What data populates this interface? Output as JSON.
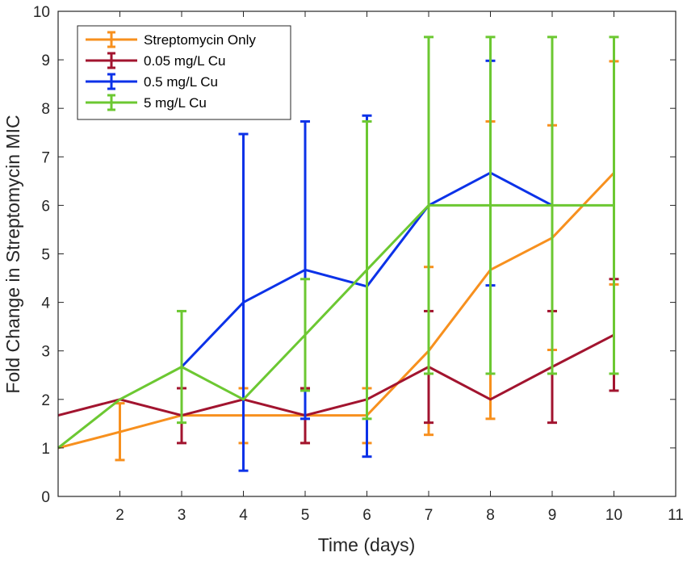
{
  "chart_data": {
    "type": "line",
    "title": "",
    "xlabel": "Time (days)",
    "ylabel": "Fold Change in Streptomycin MIC",
    "xlim": [
      1,
      11
    ],
    "ylim": [
      0,
      10
    ],
    "xticks": [
      2,
      3,
      4,
      5,
      6,
      7,
      8,
      9,
      10,
      11
    ],
    "yticks": [
      0,
      1,
      2,
      3,
      4,
      5,
      6,
      7,
      8,
      9,
      10
    ],
    "grid": false,
    "legend_position": "top-left",
    "series": [
      {
        "name": "Streptomycin Only",
        "color": "#F7901E",
        "x": [
          1,
          2,
          3,
          4,
          5,
          6,
          7,
          8,
          9,
          10
        ],
        "y": [
          1,
          1.33,
          1.67,
          1.67,
          1.67,
          1.67,
          3,
          4.67,
          5.33,
          6.67
        ],
        "err_low": [
          1,
          0.75,
          1.67,
          1.1,
          1.1,
          1.1,
          1.27,
          1.6,
          3.02,
          4.37
        ],
        "err_high": [
          1,
          1.92,
          1.67,
          2.23,
          2.23,
          2.23,
          4.73,
          7.73,
          7.65,
          8.97
        ]
      },
      {
        "name": "0.05 mg/L Cu",
        "color": "#A2142F",
        "x": [
          1,
          2,
          3,
          4,
          5,
          6,
          7,
          8,
          9,
          10
        ],
        "y": [
          1.67,
          2,
          1.67,
          2,
          1.67,
          2,
          2.67,
          2,
          2.67,
          3.33
        ],
        "err_low": [
          1.67,
          2,
          1.1,
          2,
          1.1,
          2,
          1.52,
          2,
          1.52,
          2.18
        ],
        "err_high": [
          1.67,
          2,
          2.23,
          2,
          2.23,
          2,
          3.82,
          2,
          3.82,
          4.48
        ]
      },
      {
        "name": "0.5 mg/L Cu",
        "color": "#0C32E8",
        "x": [
          3,
          4,
          5,
          6,
          7,
          8,
          9
        ],
        "y": [
          2.67,
          4,
          4.67,
          4.33,
          6,
          6.67,
          6
        ],
        "err_low": [
          2.67,
          0.53,
          1.6,
          0.82,
          6,
          4.35,
          6
        ],
        "err_high": [
          2.67,
          7.47,
          7.73,
          7.85,
          6,
          8.98,
          6
        ]
      },
      {
        "name": "5 mg/L Cu",
        "color": "#6CC832",
        "x": [
          1,
          2,
          3,
          4,
          5,
          6,
          7,
          8,
          9,
          10
        ],
        "y": [
          1,
          2,
          2.67,
          2,
          3.33,
          4.67,
          6,
          6,
          6,
          6
        ],
        "err_low": [
          1,
          2,
          1.52,
          2,
          2.18,
          1.6,
          2.53,
          2.53,
          2.53,
          2.53
        ],
        "err_high": [
          1,
          2,
          3.82,
          2,
          4.48,
          7.73,
          9.47,
          9.47,
          9.47,
          9.47
        ]
      }
    ]
  }
}
